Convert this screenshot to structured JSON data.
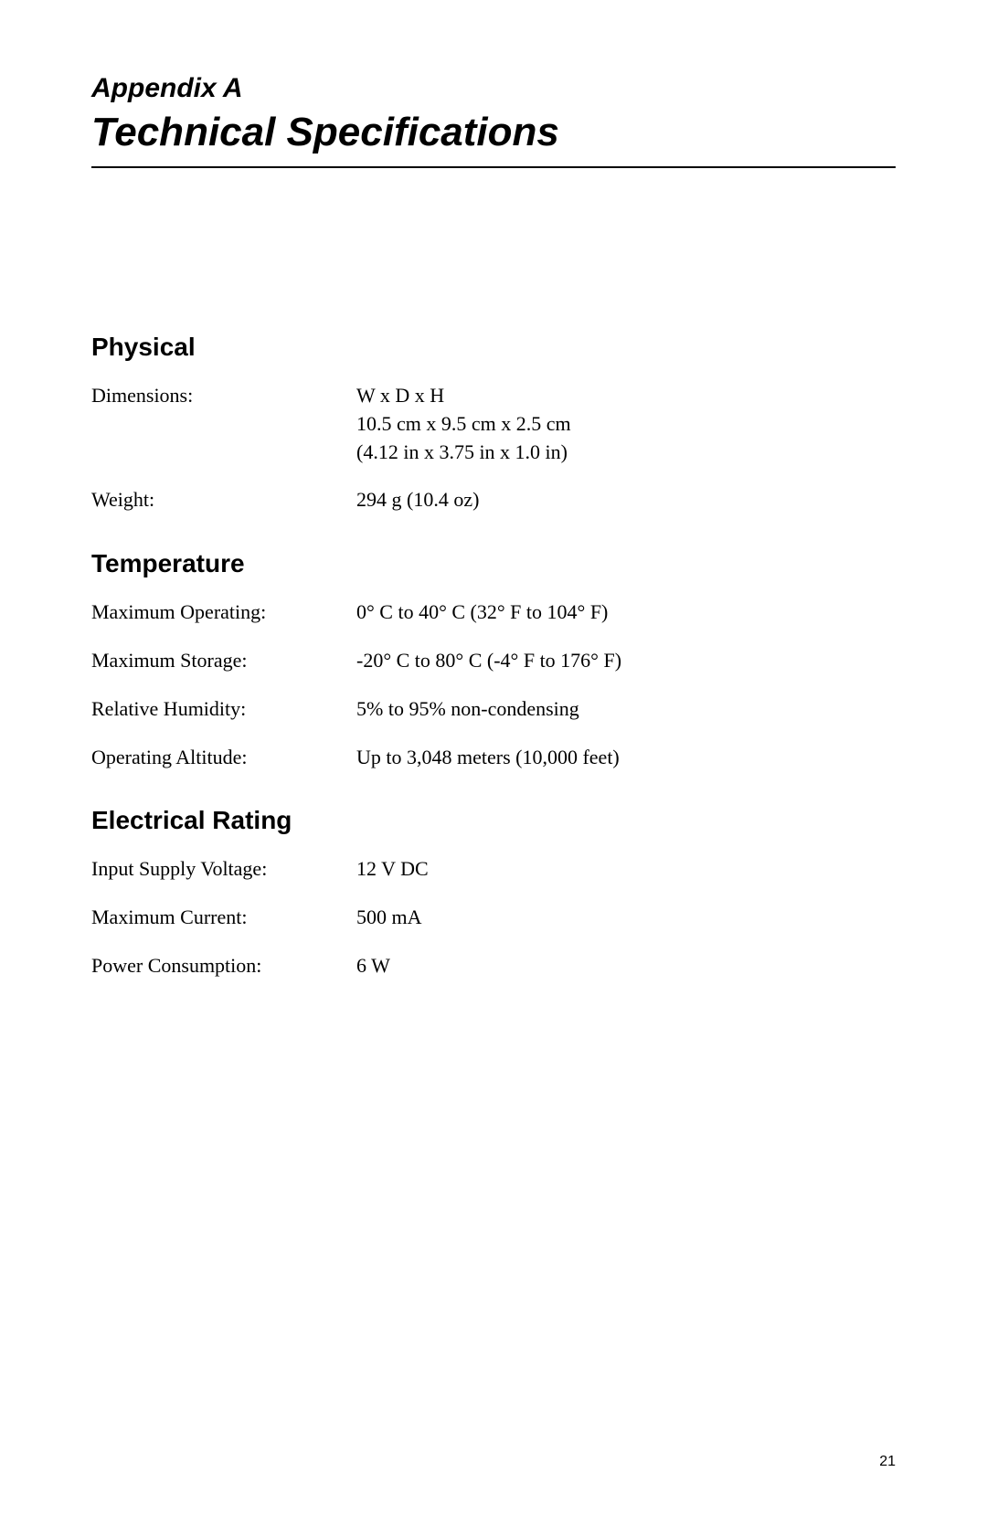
{
  "appendix_label": "Appendix A",
  "main_title": "Technical Specifications",
  "page_number": "21",
  "sections": {
    "physical": {
      "heading": "Physical",
      "rows": {
        "dimensions": {
          "label": "Dimensions:",
          "lines": {
            "l0": "W x D x H",
            "l1": "10.5 cm x 9.5 cm x 2.5 cm",
            "l2": "(4.12 in x 3.75 in x 1.0 in)"
          }
        },
        "weight": {
          "label": "Weight:",
          "value": "294 g (10.4 oz)"
        }
      }
    },
    "temperature": {
      "heading": "Temperature",
      "rows": {
        "max_operating": {
          "label": "Maximum Operating:",
          "value": "0° C to 40° C (32° F to 104° F)"
        },
        "max_storage": {
          "label": "Maximum Storage:",
          "value": "-20° C to 80° C (-4° F to 176° F)"
        },
        "relative_humidity": {
          "label": "Relative Humidity:",
          "value": "5% to 95% non-condensing"
        },
        "operating_altitude": {
          "label": "Operating Altitude:",
          "value": "Up to 3,048 meters (10,000 feet)"
        }
      }
    },
    "electrical": {
      "heading": "Electrical Rating",
      "rows": {
        "input_voltage": {
          "label": "Input Supply Voltage:",
          "value": "12 V DC"
        },
        "max_current": {
          "label": "Maximum Current:",
          "value": "500 mA"
        },
        "power_consumption": {
          "label": "Power Consumption:",
          "value": "6 W"
        }
      }
    }
  }
}
